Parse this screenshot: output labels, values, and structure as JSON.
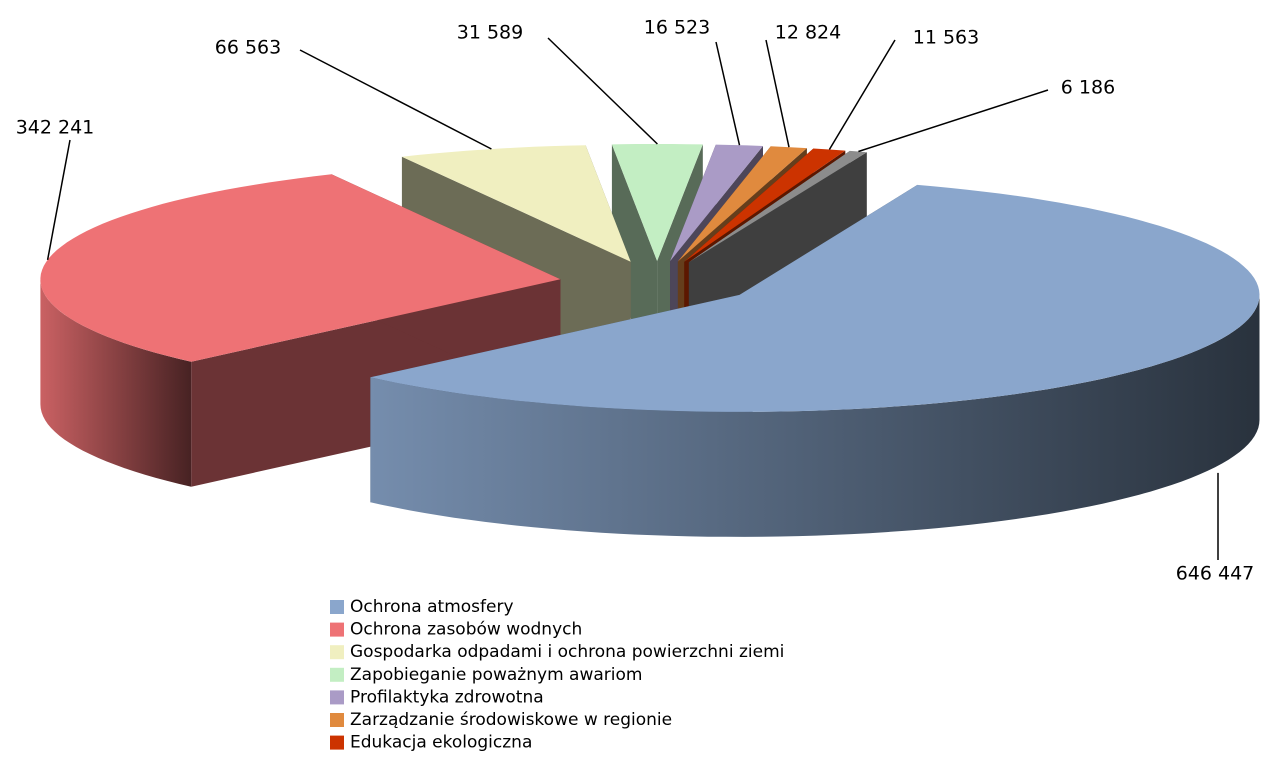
{
  "chart_data": {
    "type": "pie3d",
    "categories": [
      "Ochrona atmosfery",
      "Ochrona zasobów wodnych",
      "Gospodarka odpadami i ochrona powierzchni ziemi",
      "Zapobieganie poważnym awariom",
      "Profilaktyka zdrowotna",
      "Zarządzanie środowiskowe w regionie",
      "Edukacja ekologiczna",
      null
    ],
    "values": [
      646447,
      342241,
      66563,
      31589,
      16523,
      12824,
      11563,
      6186
    ],
    "value_labels": [
      "646 447",
      "342 241",
      "66 563",
      "31 589",
      "16 523",
      "12 824",
      "11 563",
      "6 186"
    ],
    "colors": [
      "#8aa6cc",
      "#ee7275",
      "#f0efc0",
      "#c3eec3",
      "#aa9bc6",
      "#e08a3e",
      "#cc3300",
      "#8c8c8c"
    ],
    "legend": "bottom"
  }
}
